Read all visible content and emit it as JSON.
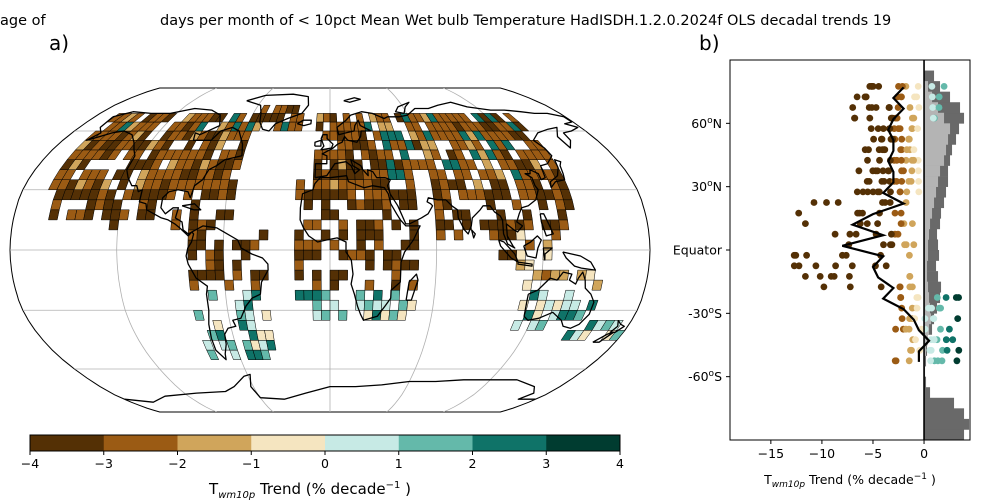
{
  "title_left": "age of",
  "title_main": "days per month of < 10pct Mean Wet bulb Temperature HadISDH.1.2.0.2024f OLS decadal trends 19",
  "panel_a_label": "a)",
  "panel_b_label": "b)",
  "colors": {
    "bins": [
      "#543005",
      "#9b5b14",
      "#d0a55b",
      "#f5e5c0",
      "#c7eae5",
      "#64b9aa",
      "#0f7368",
      "#003c30"
    ],
    "land_line": "#000000",
    "grid": "#b0b0b0",
    "profile_line": "#000000",
    "hist_dark": "#696969",
    "hist_light": "#b4b4b4"
  },
  "chart_data": [
    {
      "type": "heatmap",
      "panel": "a",
      "description_source": "map of gridbox trends, Robinson projection",
      "colorbar": {
        "ticks": [
          "−4",
          "−3",
          "−2",
          "−1",
          "0",
          "1",
          "2",
          "3",
          "4"
        ],
        "bounds": [
          -4,
          -3,
          -2,
          -1,
          0,
          1,
          2,
          3,
          4
        ],
        "label_main": "T",
        "label_sub": "wm10p",
        "label_rest": " Trend (% decade",
        "label_sup": "−1",
        "label_end": " )"
      },
      "graticule": {
        "lon_step": 60,
        "lat_step": 30
      }
    },
    {
      "type": "scatter",
      "panel": "b",
      "xlabel_main": "T",
      "xlabel_sub": "wm10p",
      "xlabel_rest": " Trend (% decade",
      "xlabel_sup": "−1",
      "xlabel_end": " )",
      "xlim": [
        -19,
        4.5
      ],
      "ylim": [
        -90,
        90
      ],
      "xticks": [
        {
          "value": -15,
          "label": "−15"
        },
        {
          "value": -10,
          "label": "−10"
        },
        {
          "value": -5,
          "label": "−5"
        },
        {
          "value": 0,
          "label": "0"
        }
      ],
      "yticks": [
        {
          "value": 60,
          "label": "60",
          "sup": "o",
          "suffix": "N"
        },
        {
          "value": 30,
          "label": "30",
          "sup": "o",
          "suffix": "N"
        },
        {
          "value": 0,
          "label": "Equator",
          "sup": "",
          "suffix": ""
        },
        {
          "value": -30,
          "label": "-30",
          "sup": "o",
          "suffix": "S"
        },
        {
          "value": -60,
          "label": "-60",
          "sup": "o",
          "suffix": "S"
        }
      ],
      "zonal_mean_profile": [
        {
          "lat": 77,
          "x": -2
        },
        {
          "lat": 72,
          "x": -3
        },
        {
          "lat": 67,
          "x": -2
        },
        {
          "lat": 62,
          "x": -3
        },
        {
          "lat": 57,
          "x": -3.5
        },
        {
          "lat": 52,
          "x": -3
        },
        {
          "lat": 47,
          "x": -3
        },
        {
          "lat": 42,
          "x": -3.5
        },
        {
          "lat": 37,
          "x": -3
        },
        {
          "lat": 32,
          "x": -3
        },
        {
          "lat": 27,
          "x": -4
        },
        {
          "lat": 22,
          "x": -2
        },
        {
          "lat": 17,
          "x": -5
        },
        {
          "lat": 12,
          "x": -7
        },
        {
          "lat": 7,
          "x": -4
        },
        {
          "lat": 2,
          "x": -8
        },
        {
          "lat": -3,
          "x": -4
        },
        {
          "lat": -8,
          "x": -5
        },
        {
          "lat": -13,
          "x": -4.5
        },
        {
          "lat": -18,
          "x": -3
        },
        {
          "lat": -23,
          "x": -4
        },
        {
          "lat": -28,
          "x": -2
        },
        {
          "lat": -33,
          "x": -1
        },
        {
          "lat": -38,
          "x": -0.5
        },
        {
          "lat": -43,
          "x": 0.5
        },
        {
          "lat": -48,
          "x": -0.5
        },
        {
          "lat": -53,
          "x": -0.5
        }
      ],
      "land_fraction_hist": [
        {
          "lat": -87.5,
          "v": 4.0
        },
        {
          "lat": -82.5,
          "v": 4.5
        },
        {
          "lat": -77.5,
          "v": 4.0
        },
        {
          "lat": -72.5,
          "v": 3.0
        },
        {
          "lat": -67.5,
          "v": 0.6
        },
        {
          "lat": -62.5,
          "v": 0.2
        },
        {
          "lat": -57.5,
          "v": 0.1
        },
        {
          "lat": -52.5,
          "v": 0.2
        },
        {
          "lat": -47.5,
          "v": 0.3
        },
        {
          "lat": -42.5,
          "v": 0.3
        },
        {
          "lat": -37.5,
          "v": 0.8
        },
        {
          "lat": -32.5,
          "v": 1.0
        },
        {
          "lat": -27.5,
          "v": 1.3
        },
        {
          "lat": -22.5,
          "v": 1.6
        },
        {
          "lat": -17.5,
          "v": 1.7
        },
        {
          "lat": -12.5,
          "v": 1.4
        },
        {
          "lat": -7.5,
          "v": 1.2
        },
        {
          "lat": -2.5,
          "v": 1.5
        },
        {
          "lat": 2.5,
          "v": 1.4
        },
        {
          "lat": 7.5,
          "v": 1.3
        },
        {
          "lat": 12.5,
          "v": 1.6
        },
        {
          "lat": 17.5,
          "v": 1.7
        },
        {
          "lat": 22.5,
          "v": 2.0
        },
        {
          "lat": 27.5,
          "v": 2.2
        },
        {
          "lat": 32.5,
          "v": 2.4
        },
        {
          "lat": 37.5,
          "v": 2.4
        },
        {
          "lat": 42.5,
          "v": 2.6
        },
        {
          "lat": 47.5,
          "v": 2.8
        },
        {
          "lat": 52.5,
          "v": 3.2
        },
        {
          "lat": 57.5,
          "v": 3.5
        },
        {
          "lat": 62.5,
          "v": 4.0
        },
        {
          "lat": 67.5,
          "v": 3.6
        },
        {
          "lat": 72.5,
          "v": 2.6
        },
        {
          "lat": 77.5,
          "v": 1.6
        },
        {
          "lat": 82.5,
          "v": 1.0
        }
      ],
      "obs_hist": [
        {
          "lat": -52.5,
          "v": 0.1
        },
        {
          "lat": -47.5,
          "v": 0.2
        },
        {
          "lat": -42.5,
          "v": 0.4
        },
        {
          "lat": -37.5,
          "v": 0.5
        },
        {
          "lat": -32.5,
          "v": 0.7
        },
        {
          "lat": -27.5,
          "v": 0.6
        },
        {
          "lat": -22.5,
          "v": 0.5
        },
        {
          "lat": -17.5,
          "v": 0.4
        },
        {
          "lat": -12.5,
          "v": 0.3
        },
        {
          "lat": -7.5,
          "v": 0.3
        },
        {
          "lat": -2.5,
          "v": 0.4
        },
        {
          "lat": 2.5,
          "v": 0.4
        },
        {
          "lat": 7.5,
          "v": 0.5
        },
        {
          "lat": 12.5,
          "v": 0.6
        },
        {
          "lat": 17.5,
          "v": 0.8
        },
        {
          "lat": 22.5,
          "v": 1.0
        },
        {
          "lat": 27.5,
          "v": 1.2
        },
        {
          "lat": 32.5,
          "v": 1.4
        },
        {
          "lat": 37.5,
          "v": 1.6
        },
        {
          "lat": 42.5,
          "v": 2.0
        },
        {
          "lat": 47.5,
          "v": 2.2
        },
        {
          "lat": 52.5,
          "v": 2.4
        },
        {
          "lat": 57.5,
          "v": 2.6
        },
        {
          "lat": 62.5,
          "v": 2.0
        },
        {
          "lat": 67.5,
          "v": 1.4
        },
        {
          "lat": 72.5,
          "v": 0.8
        },
        {
          "lat": 77.5,
          "v": 0.4
        }
      ]
    }
  ]
}
